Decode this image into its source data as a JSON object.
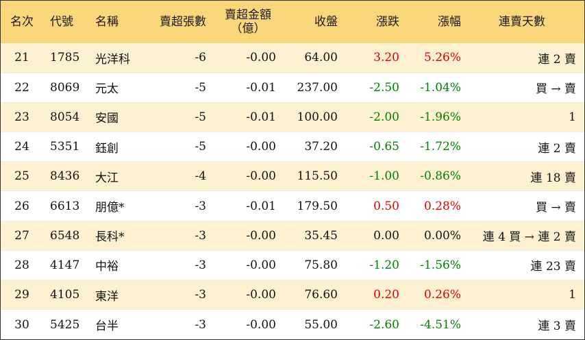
{
  "headers": {
    "rank": "名次",
    "code": "代號",
    "name": "名稱",
    "net_lots": "賣超張數",
    "net_amount_line1": "賣超金額",
    "net_amount_line2": "（億）",
    "close": "收盤",
    "change": "漲跌",
    "change_pct": "漲幅",
    "consecutive": "連賣天數"
  },
  "colors": {
    "header_bg": "#fbd77c",
    "odd_row_bg": "#fdf1d2",
    "up": "#e00000",
    "down": "#008000"
  },
  "rows": [
    {
      "rank": "21",
      "code": "1785",
      "name": "光洋科",
      "net_lots": "-6",
      "net_amount": "-0.00",
      "close": "64.00",
      "change": "3.20",
      "change_pct": "5.26%",
      "dir": "up",
      "consecutive": "連 2 賣"
    },
    {
      "rank": "22",
      "code": "8069",
      "name": "元太",
      "net_lots": "-5",
      "net_amount": "-0.01",
      "close": "237.00",
      "change": "-2.50",
      "change_pct": "-1.04%",
      "dir": "down",
      "consecutive": "買 → 賣"
    },
    {
      "rank": "23",
      "code": "8054",
      "name": "安國",
      "net_lots": "-5",
      "net_amount": "-0.01",
      "close": "100.00",
      "change": "-2.00",
      "change_pct": "-1.96%",
      "dir": "down",
      "consecutive": "1"
    },
    {
      "rank": "24",
      "code": "5351",
      "name": "鈺創",
      "net_lots": "-5",
      "net_amount": "-0.00",
      "close": "37.20",
      "change": "-0.65",
      "change_pct": "-1.72%",
      "dir": "down",
      "consecutive": "連 2 賣"
    },
    {
      "rank": "25",
      "code": "8436",
      "name": "大江",
      "net_lots": "-4",
      "net_amount": "-0.00",
      "close": "115.50",
      "change": "-1.00",
      "change_pct": "-0.86%",
      "dir": "down",
      "consecutive": "連 18 賣"
    },
    {
      "rank": "26",
      "code": "6613",
      "name": "朋億*",
      "net_lots": "-3",
      "net_amount": "-0.01",
      "close": "179.50",
      "change": "0.50",
      "change_pct": "0.28%",
      "dir": "up",
      "consecutive": "買 → 賣"
    },
    {
      "rank": "27",
      "code": "6548",
      "name": "長科*",
      "net_lots": "-3",
      "net_amount": "-0.00",
      "close": "35.45",
      "change": "0.00",
      "change_pct": "0.00%",
      "dir": "flat",
      "consecutive": "連 4 買 → 連 2 賣"
    },
    {
      "rank": "28",
      "code": "4147",
      "name": "中裕",
      "net_lots": "-3",
      "net_amount": "-0.00",
      "close": "75.80",
      "change": "-1.20",
      "change_pct": "-1.56%",
      "dir": "down",
      "consecutive": "連 23 賣"
    },
    {
      "rank": "29",
      "code": "4105",
      "name": "東洋",
      "net_lots": "-3",
      "net_amount": "-0.00",
      "close": "76.60",
      "change": "0.20",
      "change_pct": "0.26%",
      "dir": "up",
      "consecutive": "1"
    },
    {
      "rank": "30",
      "code": "5425",
      "name": "台半",
      "net_lots": "-3",
      "net_amount": "-0.00",
      "close": "55.00",
      "change": "-2.60",
      "change_pct": "-4.51%",
      "dir": "down",
      "consecutive": "連 3 賣"
    }
  ]
}
